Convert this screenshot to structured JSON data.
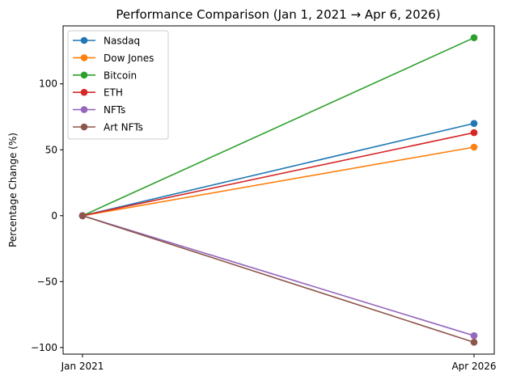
{
  "chart_data": {
    "type": "line",
    "title": "Performance Comparison (Jan 1, 2021 → Apr 6, 2026)",
    "xlabel": "",
    "ylabel": "Percentage Change (%)",
    "categories": [
      "Jan 2021",
      "Apr 2026"
    ],
    "ylim": [
      -105,
      144
    ],
    "yticks": [
      -100,
      -50,
      0,
      50,
      100
    ],
    "yticks_text": [
      "−100",
      "−50",
      "0",
      "50",
      "100"
    ],
    "grid": false,
    "legend_position": "top-left",
    "series": [
      {
        "name": "Nasdaq",
        "color": "#1f77b4",
        "values": [
          0,
          70
        ]
      },
      {
        "name": "Dow Jones",
        "color": "#ff7f0e",
        "values": [
          0,
          52
        ]
      },
      {
        "name": "Bitcoin",
        "color": "#2ca02c",
        "values": [
          0,
          135
        ]
      },
      {
        "name": "ETH",
        "color": "#d62728",
        "values": [
          0,
          63
        ]
      },
      {
        "name": "NFTs",
        "color": "#9467bd",
        "values": [
          0,
          -91
        ]
      },
      {
        "name": "Art NFTs",
        "color": "#8c564b",
        "values": [
          0,
          -96
        ]
      }
    ]
  }
}
